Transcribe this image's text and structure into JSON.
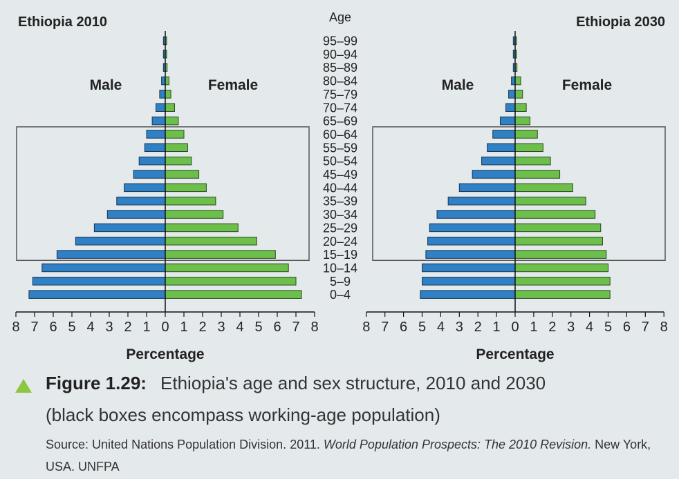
{
  "age_axis_title": "Age",
  "x_axis_label": "Percentage",
  "colors": {
    "male": "#2f80c4",
    "female": "#6dbf4b",
    "box": "#555555"
  },
  "chart_data": [
    {
      "type": "bar",
      "title": "Ethiopia 2010",
      "xlabel": "Percentage",
      "ylabel": "Age",
      "xlim": [
        -8,
        8
      ],
      "tick_labels": [
        "8",
        "7",
        "6",
        "5",
        "4",
        "3",
        "2",
        "1",
        "0",
        "1",
        "2",
        "3",
        "4",
        "5",
        "6",
        "7",
        "8"
      ],
      "side_labels": {
        "male": "Male",
        "female": "Female"
      },
      "categories": [
        "95–99",
        "90–94",
        "85–89",
        "80–84",
        "75–79",
        "70–74",
        "65–69",
        "60–64",
        "55–59",
        "50–54",
        "45–49",
        "40–44",
        "35–39",
        "30–34",
        "25–29",
        "20–24",
        "15–19",
        "10–14",
        "5–9",
        "0–4"
      ],
      "series": [
        {
          "name": "Male",
          "values": [
            0.1,
            0.1,
            0.1,
            0.2,
            0.3,
            0.5,
            0.7,
            1.0,
            1.1,
            1.4,
            1.7,
            2.2,
            2.6,
            3.1,
            3.8,
            4.8,
            5.8,
            6.6,
            7.1,
            7.3
          ]
        },
        {
          "name": "Female",
          "values": [
            0.05,
            0.05,
            0.1,
            0.2,
            0.3,
            0.5,
            0.7,
            1.0,
            1.2,
            1.4,
            1.8,
            2.2,
            2.7,
            3.1,
            3.9,
            4.9,
            5.9,
            6.6,
            7.0,
            7.3
          ]
        }
      ],
      "working_age_box": [
        "15–19",
        "60–64"
      ]
    },
    {
      "type": "bar",
      "title": "Ethiopia 2030",
      "xlabel": "Percentage",
      "ylabel": "Age",
      "xlim": [
        -8,
        8
      ],
      "tick_labels": [
        "8",
        "7",
        "6",
        "5",
        "4",
        "3",
        "2",
        "1",
        "0",
        "1",
        "2",
        "3",
        "4",
        "5",
        "6",
        "7",
        "8"
      ],
      "side_labels": {
        "male": "Male",
        "female": "Female"
      },
      "categories": [
        "95–99",
        "90–94",
        "85–89",
        "80–84",
        "75–79",
        "70–74",
        "65–69",
        "60–64",
        "55–59",
        "50–54",
        "45–49",
        "40–44",
        "35–39",
        "30–34",
        "25–29",
        "20–24",
        "15–19",
        "10–14",
        "5–9",
        "0–4"
      ],
      "series": [
        {
          "name": "Male",
          "values": [
            0.1,
            0.1,
            0.1,
            0.2,
            0.35,
            0.5,
            0.8,
            1.2,
            1.5,
            1.8,
            2.3,
            3.0,
            3.6,
            4.2,
            4.6,
            4.7,
            4.8,
            5.0,
            5.0,
            5.1
          ]
        },
        {
          "name": "Female",
          "values": [
            0.05,
            0.05,
            0.1,
            0.3,
            0.4,
            0.6,
            0.8,
            1.2,
            1.5,
            1.9,
            2.4,
            3.1,
            3.8,
            4.3,
            4.6,
            4.7,
            4.9,
            5.0,
            5.1,
            5.1
          ]
        }
      ],
      "working_age_box": [
        "15–19",
        "60–64"
      ]
    }
  ],
  "caption": {
    "figure_label": "Figure 1.29:",
    "title": "Ethiopia's age and sex structure, 2010 and 2030",
    "subtitle": "(black boxes encompass working-age population)",
    "source_prefix": "Source: United Nations Population Division. 2011.",
    "source_work": "World Population Prospects: The 2010 Revision.",
    "source_suffix": "New York, USA. UNFPA"
  }
}
